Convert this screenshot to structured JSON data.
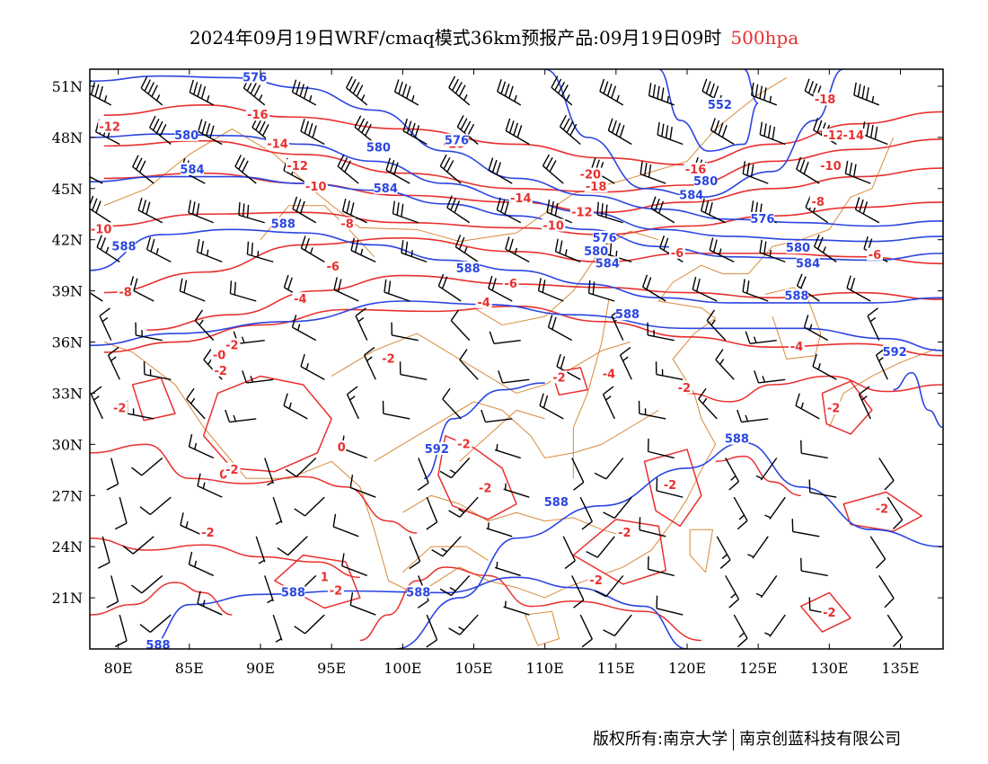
{
  "title": {
    "text": "2024年09月19日WRF/cmaq模式36km预报产品:09月19日09时",
    "level": "500hpa",
    "level_color": "#e8302f"
  },
  "footer": {
    "left": "版权所有:南京大学",
    "right": "南京创蓝科技有限公司"
  },
  "map": {
    "lon_range": [
      78,
      138
    ],
    "lat_range": [
      18,
      52
    ],
    "x_ticks": [
      "80E",
      "85E",
      "90E",
      "95E",
      "100E",
      "105E",
      "110E",
      "115E",
      "120E",
      "125E",
      "130E",
      "135E"
    ],
    "x_tick_values": [
      80,
      85,
      90,
      95,
      100,
      105,
      110,
      115,
      120,
      125,
      130,
      135
    ],
    "y_ticks": [
      "51N",
      "48N",
      "45N",
      "42N",
      "39N",
      "36N",
      "33N",
      "30N",
      "27N",
      "24N",
      "21N"
    ],
    "y_tick_values": [
      51,
      48,
      45,
      42,
      39,
      36,
      33,
      30,
      27,
      24,
      21
    ],
    "colors": {
      "height_contour": "#2b46e0",
      "temperature_contour": "#e8302f",
      "boundaries": "#d98a3a",
      "wind_barb": "#000000"
    },
    "height_contours": [
      {
        "value": "576",
        "lat_pts": [
          51.3,
          51.6,
          51.5,
          50.9,
          49.6,
          47.2,
          45.6,
          44.6,
          43.8,
          43.2,
          43.0,
          42.8,
          43.1
        ]
      },
      {
        "value": "580",
        "lat_pts": [
          48.0,
          48.2,
          48.1,
          47.6,
          46.6,
          45.3,
          44.3,
          43.6,
          42.6,
          42.2,
          42.0,
          41.9,
          42.2
        ]
      },
      {
        "value": "584",
        "lat_pts": [
          45.4,
          45.7,
          45.7,
          45.3,
          44.9,
          44.1,
          43.4,
          42.6,
          41.6,
          41.0,
          40.9,
          40.8,
          41.2
        ]
      },
      {
        "value": "588",
        "lat_pts": [
          40.2,
          42.3,
          42.6,
          42.4,
          41.7,
          40.8,
          40.2,
          39.4,
          38.6,
          38.3,
          38.3,
          38.3,
          38.6
        ]
      }
    ],
    "height_labels": [
      {
        "text": "576",
        "lon": 89.6,
        "lat": 51.5
      },
      {
        "text": "576",
        "lon": 103.8,
        "lat": 47.8
      },
      {
        "text": "552",
        "lon": 122.3,
        "lat": 49.9
      },
      {
        "text": "580",
        "lon": 84.8,
        "lat": 48.1
      },
      {
        "text": "580",
        "lon": 98.3,
        "lat": 47.4
      },
      {
        "text": "584",
        "lon": 85.2,
        "lat": 46.1
      },
      {
        "text": "584",
        "lon": 98.8,
        "lat": 45.0
      },
      {
        "text": "584",
        "lon": 120.3,
        "lat": 44.6
      },
      {
        "text": "580",
        "lon": 121.3,
        "lat": 45.4
      },
      {
        "text": "576",
        "lon": 125.3,
        "lat": 43.2
      },
      {
        "text": "588",
        "lon": 91.6,
        "lat": 42.9
      },
      {
        "text": "588",
        "lon": 80.4,
        "lat": 41.6
      },
      {
        "text": "576",
        "lon": 114.2,
        "lat": 42.1
      },
      {
        "text": "580",
        "lon": 113.6,
        "lat": 41.3
      },
      {
        "text": "584",
        "lon": 114.4,
        "lat": 40.6
      },
      {
        "text": "580",
        "lon": 127.8,
        "lat": 41.5
      },
      {
        "text": "584",
        "lon": 128.5,
        "lat": 40.6
      },
      {
        "text": "588",
        "lon": 104.6,
        "lat": 40.3
      },
      {
        "text": "588",
        "lon": 115.8,
        "lat": 37.6
      },
      {
        "text": "588",
        "lon": 127.7,
        "lat": 38.7
      },
      {
        "text": "592",
        "lon": 134.6,
        "lat": 35.4
      },
      {
        "text": "592",
        "lon": 102.4,
        "lat": 29.7
      },
      {
        "text": "588",
        "lon": 123.5,
        "lat": 30.3
      },
      {
        "text": "588",
        "lon": 110.8,
        "lat": 26.6
      },
      {
        "text": "588",
        "lon": 92.3,
        "lat": 21.3
      },
      {
        "text": "588",
        "lon": 101.1,
        "lat": 21.3
      },
      {
        "text": "588",
        "lon": 82.8,
        "lat": 18.2
      }
    ],
    "temperature_labels": [
      {
        "text": "-12",
        "lon": 79.4,
        "lat": 48.6
      },
      {
        "text": "-16",
        "lon": 89.8,
        "lat": 49.3
      },
      {
        "text": "-14",
        "lon": 91.2,
        "lat": 47.6
      },
      {
        "text": "-16",
        "lon": 103.6,
        "lat": 47.6
      },
      {
        "text": "-18",
        "lon": 129.7,
        "lat": 50.2
      },
      {
        "text": "-12",
        "lon": 92.6,
        "lat": 46.3
      },
      {
        "text": "-10",
        "lon": 93.9,
        "lat": 45.1
      },
      {
        "text": "-20",
        "lon": 113.2,
        "lat": 45.8
      },
      {
        "text": "-18",
        "lon": 113.6,
        "lat": 45.1
      },
      {
        "text": "-12",
        "lon": 130.3,
        "lat": 48.1
      },
      {
        "text": "-14",
        "lon": 131.7,
        "lat": 48.1
      },
      {
        "text": "-10",
        "lon": 130.1,
        "lat": 46.3
      },
      {
        "text": "-16",
        "lon": 120.6,
        "lat": 46.1
      },
      {
        "text": "-14",
        "lon": 108.3,
        "lat": 44.4
      },
      {
        "text": "-12",
        "lon": 112.6,
        "lat": 43.6
      },
      {
        "text": "-8",
        "lon": 129.2,
        "lat": 44.2
      },
      {
        "text": "-10",
        "lon": 110.6,
        "lat": 42.8
      },
      {
        "text": "-10",
        "lon": 78.8,
        "lat": 42.6
      },
      {
        "text": "-8",
        "lon": 96.1,
        "lat": 42.9
      },
      {
        "text": "-6",
        "lon": 119.3,
        "lat": 41.2
      },
      {
        "text": "-6",
        "lon": 133.2,
        "lat": 41.1
      },
      {
        "text": "-6",
        "lon": 95.1,
        "lat": 40.4
      },
      {
        "text": "-6",
        "lon": 107.6,
        "lat": 39.4
      },
      {
        "text": "-8",
        "lon": 80.5,
        "lat": 38.9
      },
      {
        "text": "-4",
        "lon": 92.8,
        "lat": 38.5
      },
      {
        "text": "-4",
        "lon": 105.7,
        "lat": 38.3
      },
      {
        "text": "-2",
        "lon": 88.0,
        "lat": 35.8
      },
      {
        "text": "-0",
        "lon": 87.1,
        "lat": 35.2
      },
      {
        "text": "-2",
        "lon": 87.2,
        "lat": 34.3
      },
      {
        "text": "-2",
        "lon": 99.0,
        "lat": 35.0
      },
      {
        "text": "-4",
        "lon": 114.5,
        "lat": 34.1
      },
      {
        "text": "-2",
        "lon": 111.0,
        "lat": 33.9
      },
      {
        "text": "-2",
        "lon": 119.8,
        "lat": 33.3
      },
      {
        "text": "-4",
        "lon": 127.7,
        "lat": 35.7
      },
      {
        "text": "-2",
        "lon": 80.1,
        "lat": 32.1
      },
      {
        "text": "-2",
        "lon": 130.3,
        "lat": 32.1
      },
      {
        "text": "0",
        "lon": 95.7,
        "lat": 29.8
      },
      {
        "text": "-2",
        "lon": 104.3,
        "lat": 30.0
      },
      {
        "text": "0",
        "lon": 87.4,
        "lat": 28.2
      },
      {
        "text": "-2",
        "lon": 88.0,
        "lat": 28.5
      },
      {
        "text": "-2",
        "lon": 105.8,
        "lat": 27.4
      },
      {
        "text": "-2",
        "lon": 118.8,
        "lat": 27.6
      },
      {
        "text": "-2",
        "lon": 133.7,
        "lat": 26.2
      },
      {
        "text": "-2",
        "lon": 86.3,
        "lat": 24.8
      },
      {
        "text": "-2",
        "lon": 115.6,
        "lat": 24.8
      },
      {
        "text": "-2",
        "lon": 113.6,
        "lat": 22.0
      },
      {
        "text": "-2",
        "lon": 95.3,
        "lat": 21.4
      },
      {
        "text": "1",
        "lon": 94.5,
        "lat": 22.2
      },
      {
        "text": "-2",
        "lon": 130.0,
        "lat": 20.1
      }
    ]
  }
}
